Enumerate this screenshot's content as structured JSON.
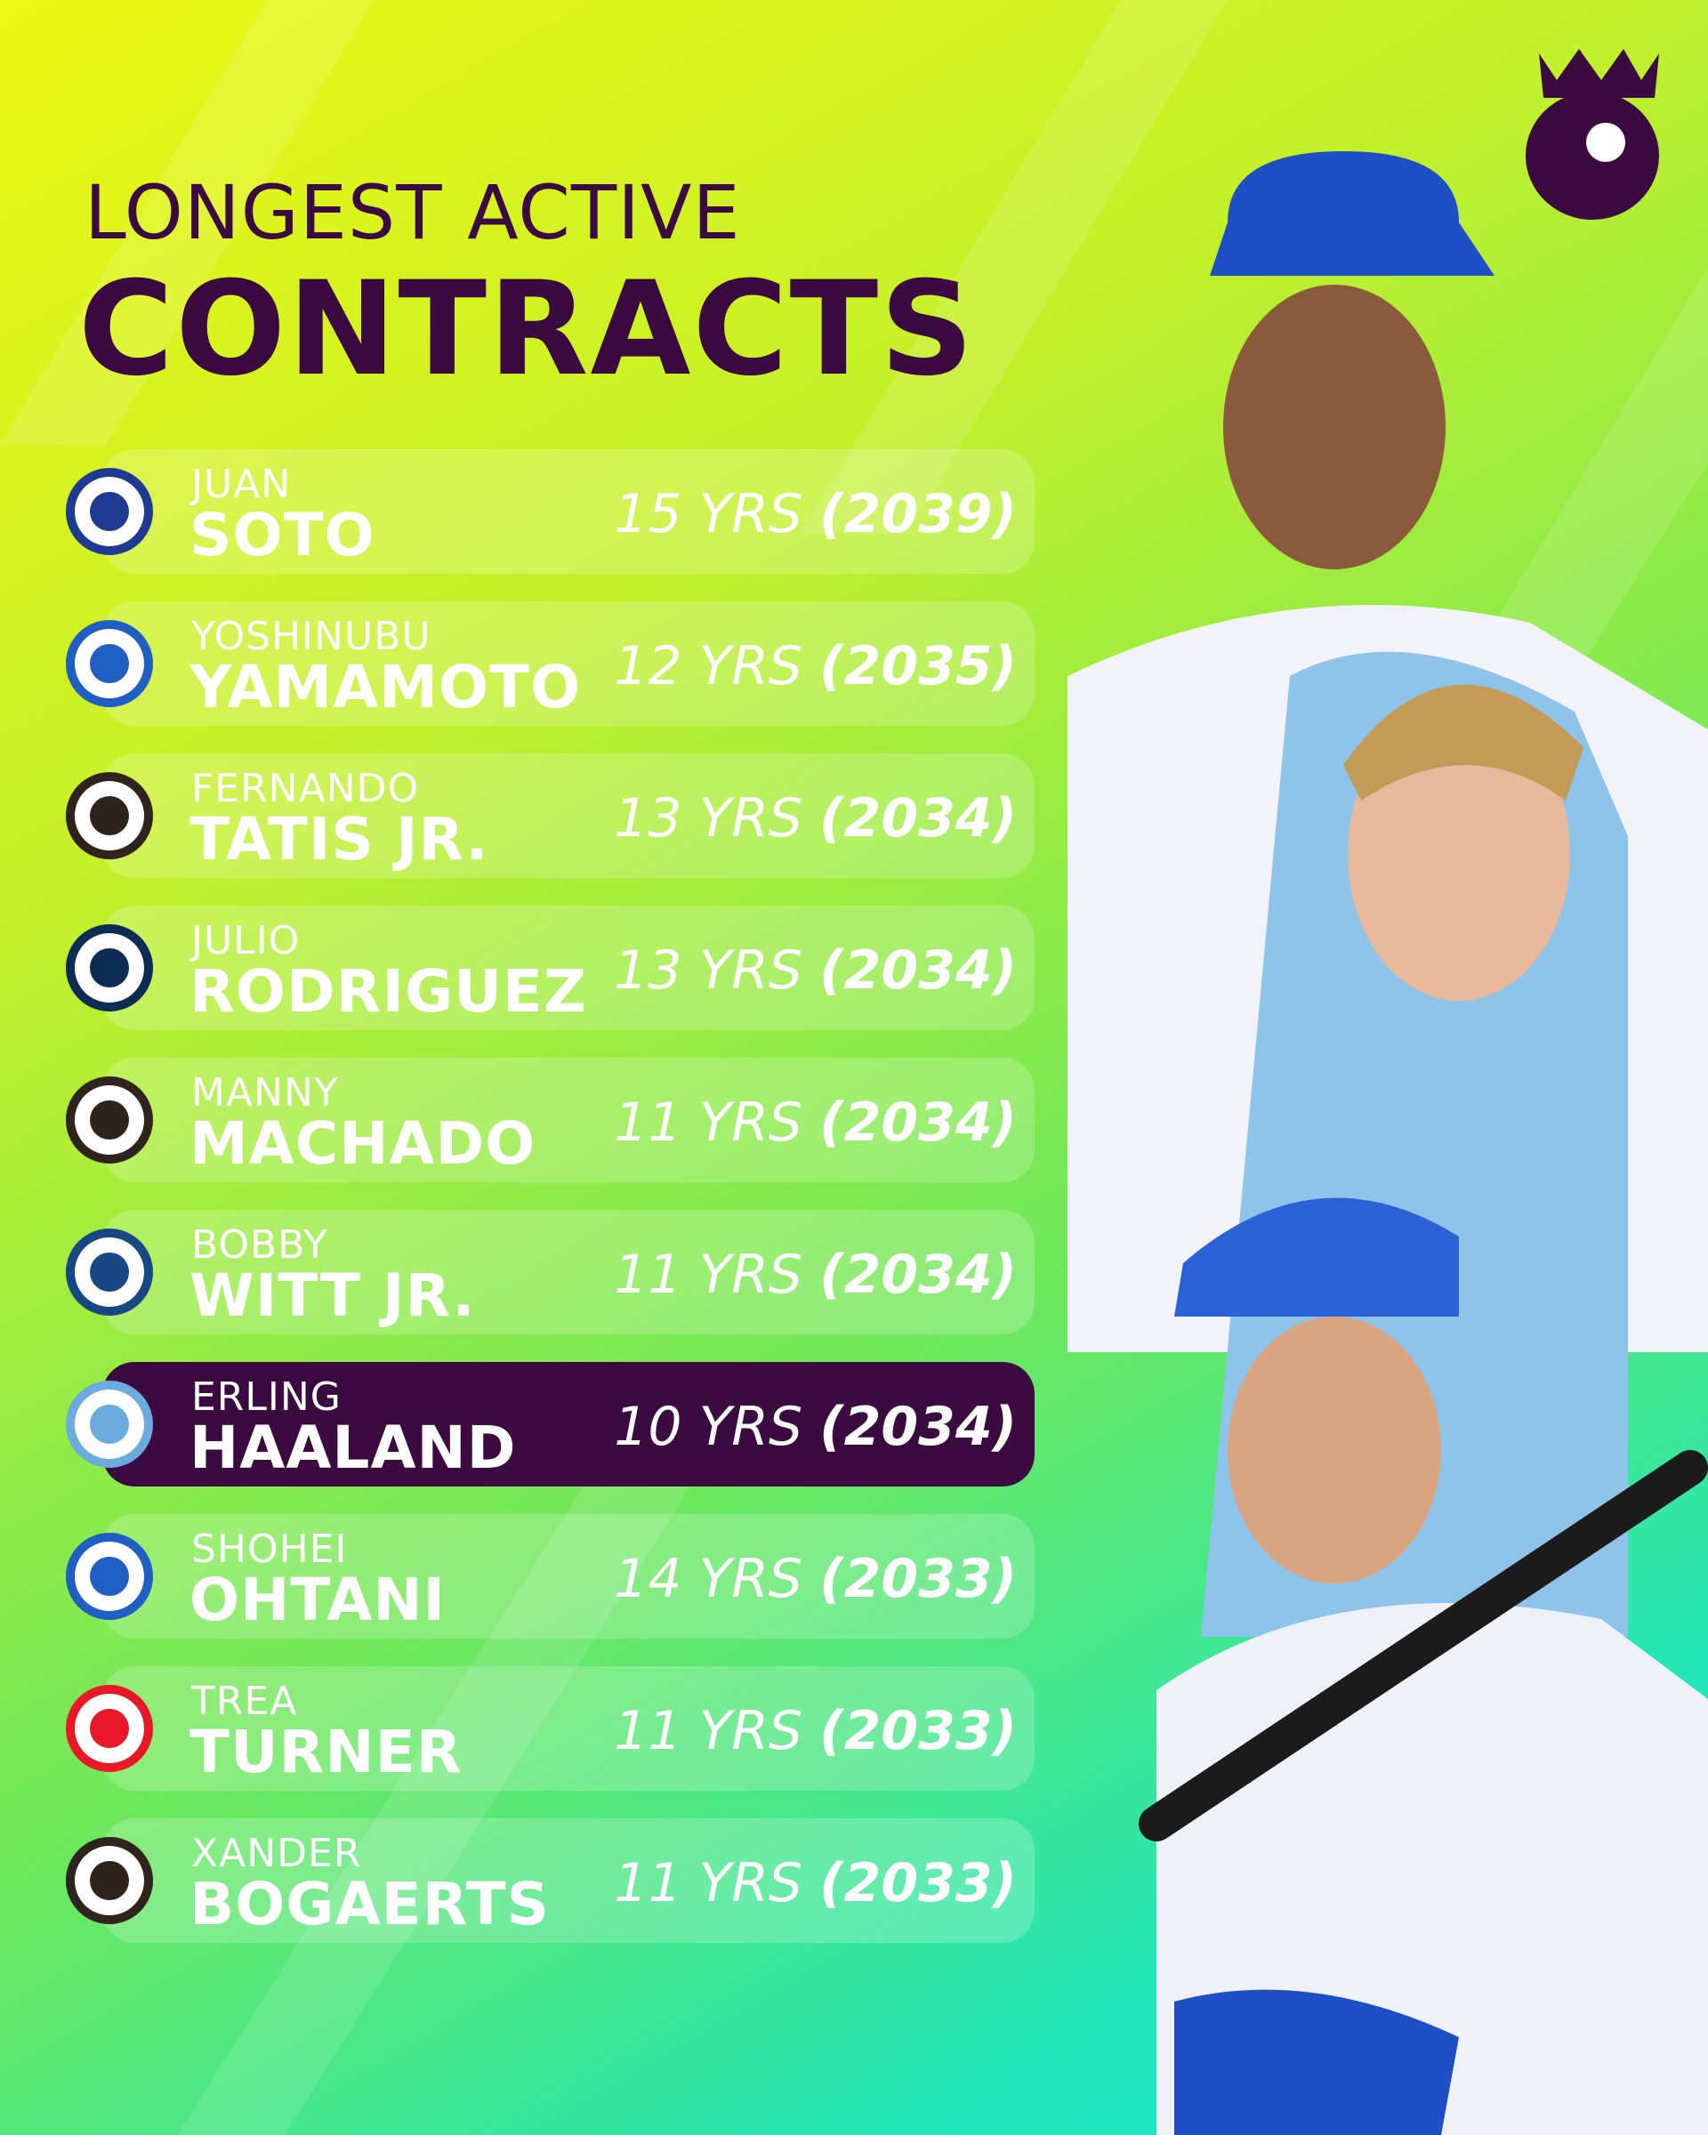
{
  "header": {
    "title_line1": "LONGEST ACTIVE",
    "title_line2": "CONTRACTS"
  },
  "rows": [
    {
      "first": "JUAN",
      "last": "SOTO",
      "years": "15 YRS",
      "until": "(2039)"
    },
    {
      "first": "YOSHINUBU",
      "last": "YAMAMOTO",
      "years": "12 YRS",
      "until": "(2035)"
    },
    {
      "first": "FERNANDO",
      "last": "TATIS JR.",
      "years": "13 YRS",
      "until": "(2034)"
    },
    {
      "first": "JULIO",
      "last": "RODRIGUEZ",
      "years": "13 YRS",
      "until": "(2034)"
    },
    {
      "first": "MANNY",
      "last": "MACHADO",
      "years": "11 YRS",
      "until": "(2034)"
    },
    {
      "first": "BOBBY",
      "last": "WITT JR.",
      "years": "11 YRS",
      "until": "(2034)"
    },
    {
      "first": "ERLING",
      "last": "HAALAND",
      "years": "10 YRS",
      "until": "(2034)",
      "highlighted": true
    },
    {
      "first": "SHOHEI",
      "last": "OHTANI",
      "years": "14 YRS",
      "until": "(2033)"
    },
    {
      "first": "TREA",
      "last": "TURNER",
      "years": "11 YRS",
      "until": "(2033)"
    },
    {
      "first": "XANDER",
      "last": "BOGAERTS",
      "years": "11 YRS",
      "until": "(2033)"
    }
  ]
}
